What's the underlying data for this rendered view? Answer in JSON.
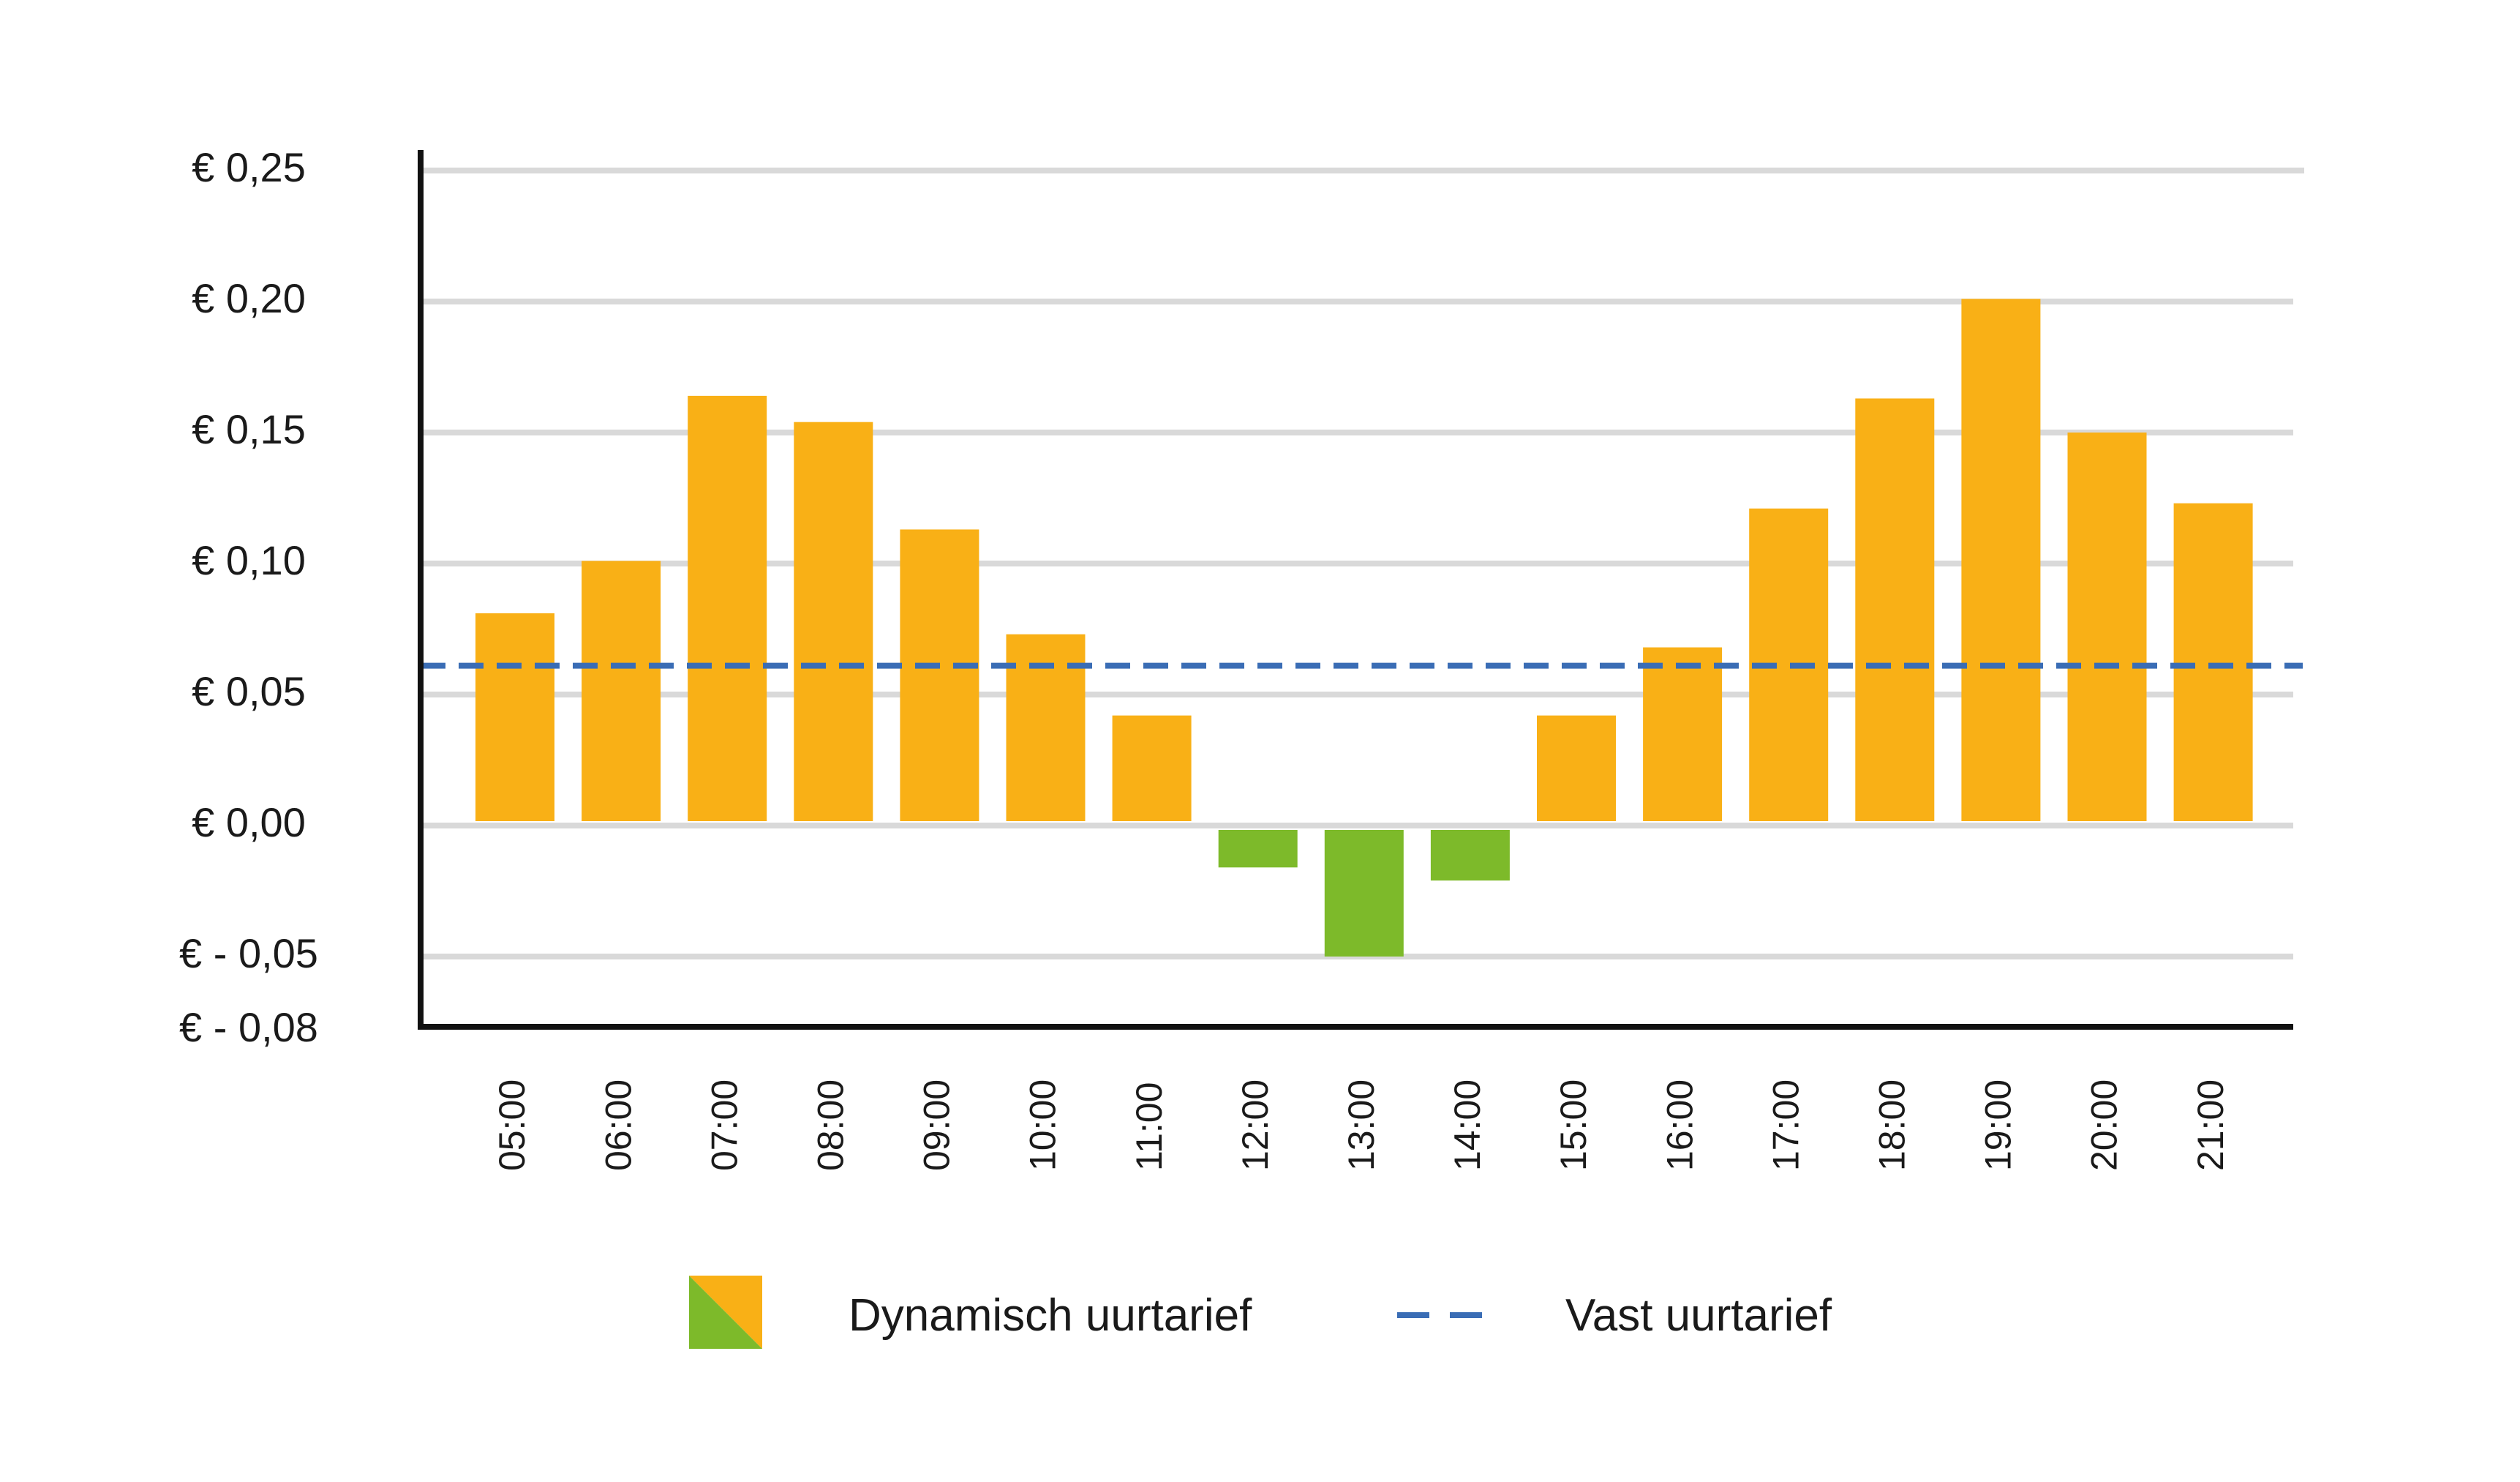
{
  "chart_data": {
    "type": "bar",
    "categories": [
      "05:00",
      "06:00",
      "07:00",
      "08:00",
      "09:00",
      "10:00",
      "11:00",
      "12:00",
      "13:00",
      "14:00",
      "15:00",
      "16:00",
      "17:00",
      "18:00",
      "19:00",
      "20:00",
      "21:00"
    ],
    "series": [
      {
        "name": "Dynamisch uurtarief",
        "values": [
          0.081,
          0.101,
          0.164,
          0.154,
          0.113,
          0.073,
          0.042,
          -0.016,
          -0.05,
          -0.021,
          0.042,
          0.068,
          0.121,
          0.163,
          0.201,
          0.15,
          0.123
        ]
      },
      {
        "name": "Vast uurtarief",
        "type": "line",
        "style": "dashed",
        "value": 0.061
      }
    ],
    "yticks": [
      {
        "value": 0.25,
        "label": "€ 0,25"
      },
      {
        "value": 0.2,
        "label": "€ 0,20"
      },
      {
        "value": 0.15,
        "label": "€ 0,15"
      },
      {
        "value": 0.1,
        "label": "€ 0,10"
      },
      {
        "value": 0.05,
        "label": "€ 0,05"
      },
      {
        "value": 0.0,
        "label": "€ 0,00"
      },
      {
        "value": -0.05,
        "label": "€ - 0,05"
      },
      {
        "value": -0.08,
        "label": "€ - 0,08"
      }
    ],
    "ylim": [
      -0.08,
      0.25
    ],
    "grid": true,
    "legend_position": "bottom",
    "colors": {
      "positive": "#F9B016",
      "negative": "#7DBA2A",
      "fixed_line": "#3A6DB5",
      "grid": "#D9D9D9",
      "axis": "#111111"
    }
  }
}
